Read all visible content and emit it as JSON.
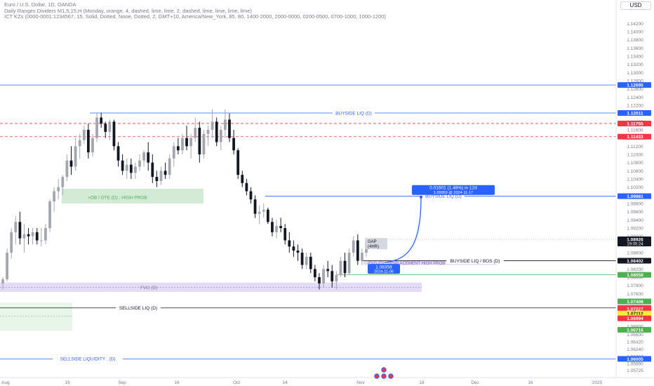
{
  "legend": {
    "line1": "Euro / U.S. Dollar, 1D, OANDA",
    "line2": "Daily Ranges Dividers M1,5,15,H (Monday, orange, 4, dashed, lime, lime, 2, dashed, lime, lime, lime, lime)",
    "line3": "ICT KZs (0000-0001:1234567, 15, Solid, Dotted, None, Dotted, 2, GMT+10, America/New_York, 85, 80, 1400-2000, 2000-0000, 0200-0500, 0700-1000, 1000-1200)"
  },
  "axis": {
    "currency": "USD",
    "ticks": [
      "1.14200",
      "1.14000",
      "1.13800",
      "1.13600",
      "1.13400",
      "1.13200",
      "1.13000",
      "1.12800",
      "1.12600",
      "1.12400",
      "1.12200",
      "1.12000",
      "1.11800",
      "1.11600",
      "1.11400",
      "1.11200",
      "1.11000",
      "1.10800",
      "1.10600",
      "1.10400",
      "1.10200",
      "1.10000",
      "1.09800",
      "1.09600",
      "1.09400",
      "1.09200",
      "1.09000",
      "1.08800",
      "1.08600",
      "1.08400",
      "1.08200",
      "1.08000",
      "1.07800",
      "1.07600",
      "1.07400",
      "1.07200",
      "1.07000",
      "1.06800",
      "1.06600",
      "1.06420",
      "1.06240",
      "1.06060",
      "1.05890",
      "1.05725"
    ],
    "time_labels": [
      "Aug",
      "19",
      "Sep",
      "16",
      "Oct",
      "14",
      "Nov",
      "18",
      "Dec",
      "16",
      "2025"
    ]
  },
  "colors": {
    "blue": "#2962ff",
    "red": "#f23645",
    "green": "#4caf50",
    "dark": "#131722",
    "grey_candle": "#a3a6af",
    "ob_zone": "#c8e6c9",
    "fvg_zone": "#e1d8f3"
  },
  "levels": [
    {
      "price": "1.12695",
      "name": "prior-high-line",
      "label": "",
      "color": "#2962ff",
      "style": "solid"
    },
    {
      "price": "1.12011",
      "name": "buyside-liq-line",
      "label": "BUYSIDE LIQ (D)",
      "color": "#2962ff",
      "style": "solid"
    },
    {
      "price": "1.11755",
      "name": "red-dashed-level-1",
      "label": "",
      "color": "#f23645",
      "style": "dashed"
    },
    {
      "price": "1.11433",
      "name": "red-dashed-level-2",
      "label": "",
      "color": "#f23645",
      "style": "dashed"
    },
    {
      "price": "1.09981",
      "name": "buyside-liq-target-line",
      "label": "BUYSIDE LIQ (D)",
      "color": "#2962ff",
      "style": "solid"
    },
    {
      "price": "1.08402",
      "name": "buyside-liq-bos-line",
      "label": "BUYSIDE LIQ / BOS (D)",
      "color": "#131722",
      "style": "solid"
    },
    {
      "price": "1.08058",
      "name": "green-level",
      "label": "",
      "color": "#4caf50",
      "style": "solid"
    },
    {
      "price": "1.07250",
      "name": "sellside-liq-line",
      "label": "SELLSIDE LIQ (D)",
      "color": "#131722",
      "style": "solid"
    },
    {
      "price": "1.06005",
      "name": "sellside-liquidity-line",
      "label": "SELLSIDE LIQUIDITY  .  (D)",
      "color": "#2962ff",
      "style": "solid"
    }
  ],
  "price_tags": [
    {
      "value": "1.12695",
      "color": "#2962ff"
    },
    {
      "value": "1.12011",
      "color": "#2962ff"
    },
    {
      "value": "1.11755",
      "color": "#f23645"
    },
    {
      "value": "1.11433",
      "color": "#f23645"
    },
    {
      "value": "1.09981",
      "color": "#2962ff"
    },
    {
      "value": "1.08926",
      "sub": "19:05:24",
      "color": "#131722"
    },
    {
      "value": "1.08402",
      "color": "#131722"
    },
    {
      "value": "1.08058",
      "color": "#4caf50"
    },
    {
      "value": "1.07408",
      "color": "#4caf50"
    },
    {
      "value": "1.07250",
      "color": "#f23645"
    },
    {
      "value": "1.07227",
      "color": "#f23645"
    },
    {
      "value": "1.07112",
      "color": "#ffeb3b"
    },
    {
      "value": "1.07014",
      "color": "#ffeb3b"
    },
    {
      "value": "1.06994",
      "color": "#f23645"
    },
    {
      "value": "1.06716",
      "color": "#4caf50"
    },
    {
      "value": "1.06005",
      "color": "#2962ff"
    }
  ],
  "zones": [
    {
      "name": "ob-ote-zone",
      "label": "+OB / OTE (D) : HIGH PROB",
      "fill": "#c8e6c9",
      "text_color": "#4caf50"
    },
    {
      "name": "fvg-zone",
      "label": "FVG (D)",
      "fill": "#e1d8f3",
      "text_color": "#787b86"
    },
    {
      "name": "displacement-fvg-zone",
      "label": "-FVG (D) : DISPLACEMENT HIGH PROB",
      "fill": "#e1d8f3",
      "text_color": "#7e57c2"
    },
    {
      "name": "left-green-zone",
      "label": "",
      "fill": "#e8f5e9",
      "text_color": "#4caf50"
    }
  ],
  "annotations": {
    "gap_label": "GAP\n(4HR)",
    "measure_line1": "0.01601 (1.48%) in 12d",
    "measure_line2": "1.09959 @ 2024-11-17",
    "entry_price": "1.08358",
    "entry_date": "2024-11-06"
  },
  "chart_data": {
    "type": "candlestick",
    "title": "Euro / U.S. Dollar, 1D, OANDA",
    "ohlc": [
      [
        1.0785,
        1.08,
        1.077,
        1.0795
      ],
      [
        1.0795,
        1.087,
        1.079,
        1.086
      ],
      [
        1.086,
        1.092,
        1.0845,
        1.091
      ],
      [
        1.091,
        1.095,
        1.088,
        1.0935
      ],
      [
        1.0935,
        1.096,
        1.088,
        1.0895
      ],
      [
        1.0895,
        1.093,
        1.086,
        1.0905
      ],
      [
        1.0905,
        1.092,
        1.088,
        1.09
      ],
      [
        1.09,
        1.092,
        1.088,
        1.091
      ],
      [
        1.091,
        1.092,
        1.088,
        1.089
      ],
      [
        1.089,
        1.092,
        1.0875,
        1.089
      ],
      [
        1.089,
        1.093,
        1.088,
        1.092
      ],
      [
        1.092,
        1.099,
        1.091,
        1.0985
      ],
      [
        1.0985,
        1.102,
        1.096,
        1.101
      ],
      [
        1.101,
        1.104,
        1.099,
        1.102
      ],
      [
        1.102,
        1.105,
        1.1,
        1.1045
      ],
      [
        1.1045,
        1.11,
        1.1035,
        1.1085
      ],
      [
        1.1085,
        1.112,
        1.105,
        1.107
      ],
      [
        1.107,
        1.114,
        1.106,
        1.112
      ],
      [
        1.112,
        1.115,
        1.109,
        1.1135
      ],
      [
        1.1135,
        1.117,
        1.1125,
        1.116
      ],
      [
        1.116,
        1.1175,
        1.109,
        1.1105
      ],
      [
        1.1105,
        1.115,
        1.1095,
        1.114
      ],
      [
        1.114,
        1.12,
        1.113,
        1.119
      ],
      [
        1.119,
        1.1202,
        1.1165,
        1.1175
      ],
      [
        1.1175,
        1.118,
        1.114,
        1.1155
      ],
      [
        1.1155,
        1.1185,
        1.1135,
        1.118
      ],
      [
        1.118,
        1.1185,
        1.111,
        1.112
      ],
      [
        1.112,
        1.113,
        1.107,
        1.1085
      ],
      [
        1.1085,
        1.11,
        1.105,
        1.106
      ],
      [
        1.106,
        1.109,
        1.104,
        1.1075
      ],
      [
        1.1075,
        1.109,
        1.104,
        1.1055
      ],
      [
        1.1055,
        1.108,
        1.104,
        1.107
      ],
      [
        1.107,
        1.11,
        1.106,
        1.1085
      ],
      [
        1.1085,
        1.111,
        1.107,
        1.1105
      ],
      [
        1.1105,
        1.113,
        1.106,
        1.108
      ],
      [
        1.108,
        1.11,
        1.103,
        1.1045
      ],
      [
        1.1045,
        1.106,
        1.102,
        1.1035
      ],
      [
        1.1035,
        1.107,
        1.1025,
        1.106
      ],
      [
        1.106,
        1.108,
        1.104,
        1.105
      ],
      [
        1.105,
        1.11,
        1.104,
        1.109
      ],
      [
        1.109,
        1.113,
        1.107,
        1.112
      ],
      [
        1.112,
        1.114,
        1.11,
        1.111
      ],
      [
        1.111,
        1.115,
        1.11,
        1.114
      ],
      [
        1.114,
        1.117,
        1.111,
        1.112
      ],
      [
        1.112,
        1.115,
        1.109,
        1.114
      ],
      [
        1.114,
        1.119,
        1.113,
        1.1165
      ],
      [
        1.1165,
        1.118,
        1.108,
        1.11
      ],
      [
        1.11,
        1.116,
        1.109,
        1.115
      ],
      [
        1.115,
        1.117,
        1.112,
        1.116
      ],
      [
        1.116,
        1.121,
        1.114,
        1.118
      ],
      [
        1.118,
        1.119,
        1.112,
        1.113
      ],
      [
        1.113,
        1.117,
        1.111,
        1.116
      ],
      [
        1.116,
        1.121,
        1.114,
        1.1185
      ],
      [
        1.1185,
        1.12,
        1.113,
        1.114
      ],
      [
        1.114,
        1.116,
        1.11,
        1.111
      ],
      [
        1.111,
        1.1115,
        1.104,
        1.105
      ],
      [
        1.105,
        1.106,
        1.102,
        1.103
      ],
      [
        1.103,
        1.104,
        1.1,
        1.101
      ],
      [
        1.101,
        1.102,
        1.098,
        1.099
      ],
      [
        1.099,
        1.1,
        1.0945,
        1.0955
      ],
      [
        1.0955,
        1.0975,
        1.093,
        1.096
      ],
      [
        1.096,
        1.098,
        1.0945,
        1.0965
      ],
      [
        1.0965,
        1.097,
        1.093,
        1.0935
      ],
      [
        1.0935,
        1.0945,
        1.09,
        1.091
      ],
      [
        1.091,
        1.094,
        1.0895,
        1.0925
      ],
      [
        1.0925,
        1.0945,
        1.091,
        1.092
      ],
      [
        1.092,
        1.093,
        1.088,
        1.089
      ],
      [
        1.089,
        1.091,
        1.086,
        1.0875
      ],
      [
        1.0875,
        1.089,
        1.085,
        1.0865
      ],
      [
        1.0865,
        1.088,
        1.084,
        1.086
      ],
      [
        1.086,
        1.087,
        1.082,
        1.083
      ],
      [
        1.083,
        1.086,
        1.082,
        1.085
      ],
      [
        1.085,
        1.086,
        1.081,
        1.082
      ],
      [
        1.082,
        1.083,
        1.079,
        1.08
      ],
      [
        1.08,
        1.081,
        1.077,
        1.0785
      ],
      [
        1.0785,
        1.083,
        1.0775,
        1.082
      ],
      [
        1.082,
        1.084,
        1.08,
        1.0815
      ],
      [
        1.0815,
        1.083,
        1.0775,
        1.079
      ],
      [
        1.079,
        1.0815,
        1.077,
        1.0805
      ],
      [
        1.0805,
        1.085,
        1.08,
        1.084
      ],
      [
        1.084,
        1.086,
        1.08,
        1.081
      ],
      [
        1.081,
        1.087,
        1.0805,
        1.086
      ],
      [
        1.086,
        1.09,
        1.085,
        1.089
      ],
      [
        1.089,
        1.0905,
        1.083,
        1.084
      ],
      [
        1.084,
        1.087,
        1.083,
        1.086
      ],
      [
        1.086,
        1.0895,
        1.085,
        1.088
      ]
    ],
    "yrange": [
      1.056,
      1.146
    ],
    "grid": false
  }
}
